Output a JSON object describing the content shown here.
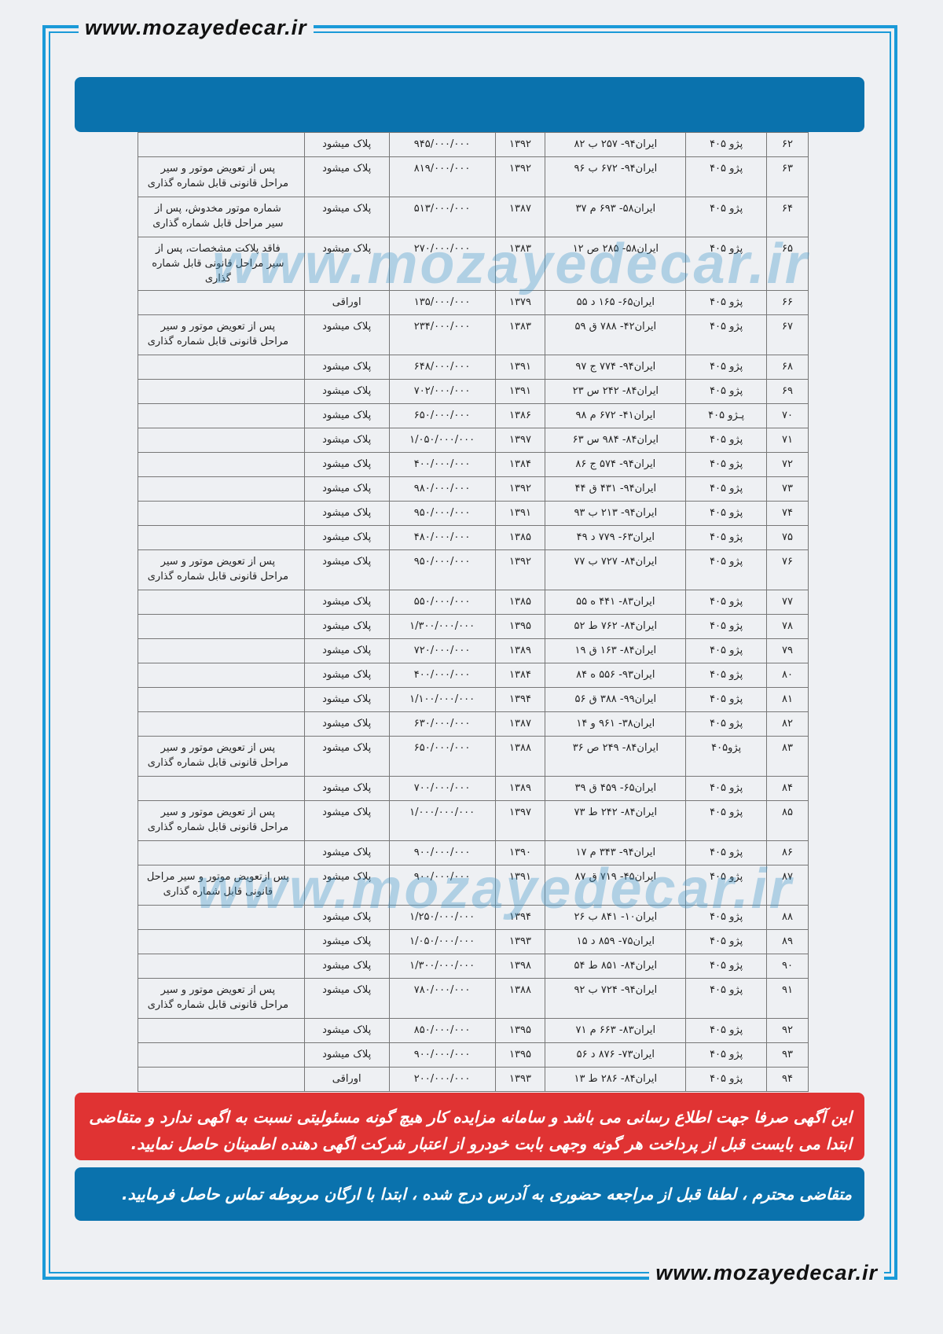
{
  "site": "www.mozayedecar.ir",
  "watermark_fa": "سامانه مزایده کار",
  "colors": {
    "frame": "#1a9ad8",
    "header_bar": "#0a72ad",
    "warning": "#e03333"
  },
  "rows": [
    [
      "۶۲",
      "پژو ۴۰۵",
      "ایران۹۴- ۲۵۷ ب ۸۲",
      "۱۳۹۲",
      "۹۴۵/۰۰۰/۰۰۰",
      "پلاک میشود",
      ""
    ],
    [
      "۶۳",
      "پژو ۴۰۵",
      "ایران۹۴- ۶۷۲ ب ۹۶",
      "۱۳۹۲",
      "۸۱۹/۰۰۰/۰۰۰",
      "پلاک میشود",
      "پس از تعویض موتور و سیر مراحل قانونی قابل شماره گذاری"
    ],
    [
      "۶۴",
      "پژو ۴۰۵",
      "ایران۵۸- ۶۹۳ م ۳۷",
      "۱۳۸۷",
      "۵۱۳/۰۰۰/۰۰۰",
      "پلاک میشود",
      "شماره موتور مخدوش، پس از سیر مراحل قابل شماره گذاری"
    ],
    [
      "۶۵",
      "پژو ۴۰۵",
      "ایران۵۸- ۲۸۵ ص ۱۲",
      "۱۳۸۳",
      "۲۷۰/۰۰۰/۰۰۰",
      "پلاک میشود",
      "فاقد پلاکت مشخصات، پس از سیر مراحل قانونی قابل شماره گذاری"
    ],
    [
      "۶۶",
      "پژو ۴۰۵",
      "ایران۶۵- ۱۶۵ د ۵۵",
      "۱۳۷۹",
      "۱۳۵/۰۰۰/۰۰۰",
      "اوراقی",
      ""
    ],
    [
      "۶۷",
      "پژو ۴۰۵",
      "ایران۴۲- ۷۸۸ ق ۵۹",
      "۱۳۸۳",
      "۲۳۴/۰۰۰/۰۰۰",
      "پلاک میشود",
      "پس از تعویض موتور و سیر مراحل قانونی قابل شماره گذاری"
    ],
    [
      "۶۸",
      "پژو ۴۰۵",
      "ایران۹۴- ۷۷۴ ج ۹۷",
      "۱۳۹۱",
      "۶۴۸/۰۰۰/۰۰۰",
      "پلاک میشود",
      ""
    ],
    [
      "۶۹",
      "پژو ۴۰۵",
      "ایران۸۴- ۲۴۲ س ۲۳",
      "۱۳۹۱",
      "۷۰۲/۰۰۰/۰۰۰",
      "پلاک میشود",
      ""
    ],
    [
      "۷۰",
      "پـژو ۴۰۵",
      "ایران۴۱- ۶۷۲ م ۹۸",
      "۱۳۸۶",
      "۶۵۰/۰۰۰/۰۰۰",
      "پلاک میشود",
      ""
    ],
    [
      "۷۱",
      "پژو ۴۰۵",
      "ایران۸۴- ۹۸۴ س ۶۳",
      "۱۳۹۷",
      "۱/۰۵۰/۰۰۰/۰۰۰",
      "پلاک میشود",
      ""
    ],
    [
      "۷۲",
      "پژو ۴۰۵",
      "ایران۹۴- ۵۷۴ ج ۸۶",
      "۱۳۸۴",
      "۴۰۰/۰۰۰/۰۰۰",
      "پلاک میشود",
      ""
    ],
    [
      "۷۳",
      "پژو ۴۰۵",
      "ایران۹۴- ۴۳۱ ق ۴۴",
      "۱۳۹۲",
      "۹۸۰/۰۰۰/۰۰۰",
      "پلاک میشود",
      ""
    ],
    [
      "۷۴",
      "پژو ۴۰۵",
      "ایران۹۴- ۲۱۳ ب ۹۳",
      "۱۳۹۱",
      "۹۵۰/۰۰۰/۰۰۰",
      "پلاک میشود",
      ""
    ],
    [
      "۷۵",
      "پژو ۴۰۵",
      "ایران۶۳- ۷۷۹ د ۴۹",
      "۱۳۸۵",
      "۴۸۰/۰۰۰/۰۰۰",
      "پلاک میشود",
      ""
    ],
    [
      "۷۶",
      "پژو ۴۰۵",
      "ایران۸۴- ۷۲۷ ب ۷۷",
      "۱۳۹۲",
      "۹۵۰/۰۰۰/۰۰۰",
      "پلاک میشود",
      "پس از تعویض موتور و سیر مراحل قانونی قابل شماره گذاری"
    ],
    [
      "۷۷",
      "پژو ۴۰۵",
      "ایران۸۳- ۴۴۱ ه ۵۵",
      "۱۳۸۵",
      "۵۵۰/۰۰۰/۰۰۰",
      "پلاک میشود",
      ""
    ],
    [
      "۷۸",
      "پژو ۴۰۵",
      "ایران۸۴- ۷۶۲ ط ۵۲",
      "۱۳۹۵",
      "۱/۳۰۰/۰۰۰/۰۰۰",
      "پلاک میشود",
      ""
    ],
    [
      "۷۹",
      "پژو ۴۰۵",
      "ایران۸۴- ۱۶۳ ق ۱۹",
      "۱۳۸۹",
      "۷۲۰/۰۰۰/۰۰۰",
      "پلاک میشود",
      ""
    ],
    [
      "۸۰",
      "پژو ۴۰۵",
      "ایران۹۳- ۵۵۶ ه ۸۴",
      "۱۳۸۴",
      "۴۰۰/۰۰۰/۰۰۰",
      "پلاک میشود",
      ""
    ],
    [
      "۸۱",
      "پژو ۴۰۵",
      "ایران۹۹- ۳۸۸ ق ۵۶",
      "۱۳۹۴",
      "۱/۱۰۰/۰۰۰/۰۰۰",
      "پلاک میشود",
      ""
    ],
    [
      "۸۲",
      "پژو ۴۰۵",
      "ایران۳۸- ۹۶۱ و ۱۴",
      "۱۳۸۷",
      "۶۳۰/۰۰۰/۰۰۰",
      "پلاک میشود",
      ""
    ],
    [
      "۸۳",
      "پژو۴۰۵",
      "ایران۸۴- ۲۴۹ ص ۳۶",
      "۱۳۸۸",
      "۶۵۰/۰۰۰/۰۰۰",
      "پلاک میشود",
      "پس از تعویض موتور و سیر مراحل قانونی قابل شماره گذاری"
    ],
    [
      "۸۴",
      "پژو ۴۰۵",
      "ایران۶۵- ۴۵۹ ق ۳۹",
      "۱۳۸۹",
      "۷۰۰/۰۰۰/۰۰۰",
      "پلاک میشود",
      ""
    ],
    [
      "۸۵",
      "پژو ۴۰۵",
      "ایران۸۴- ۲۴۲ ط ۷۳",
      "۱۳۹۷",
      "۱/۰۰۰/۰۰۰/۰۰۰",
      "پلاک میشود",
      "پس از تعویض موتور و سیر مراحل قانونی قابل شماره گذاری"
    ],
    [
      "۸۶",
      "پژو ۴۰۵",
      "ایران۹۴- ۳۴۳ م ۱۷",
      "۱۳۹۰",
      "۹۰۰/۰۰۰/۰۰۰",
      "پلاک میشود",
      ""
    ],
    [
      "۸۷",
      "پژو ۴۰۵",
      "ایران۴۵- ۷۱۹ ق ۸۷",
      "۱۳۹۱",
      "۹۰۰/۰۰۰/۰۰۰",
      "پلاک میشود",
      "پس ازتعویض موتور و سیر مراحل قانونی قابل شماره گذاری"
    ],
    [
      "۸۸",
      "پژو ۴۰۵",
      "ایران۱۰- ۸۴۱ ب ۲۶",
      "۱۳۹۴",
      "۱/۲۵۰/۰۰۰/۰۰۰",
      "پلاک میشود",
      ""
    ],
    [
      "۸۹",
      "پژو ۴۰۵",
      "ایران۷۵- ۸۵۹ د ۱۵",
      "۱۳۹۳",
      "۱/۰۵۰/۰۰۰/۰۰۰",
      "پلاک میشود",
      ""
    ],
    [
      "۹۰",
      "پژو ۴۰۵",
      "ایران۸۴- ۸۵۱ ط ۵۴",
      "۱۳۹۸",
      "۱/۳۰۰/۰۰۰/۰۰۰",
      "پلاک میشود",
      ""
    ],
    [
      "۹۱",
      "پژو ۴۰۵",
      "ایران۹۴- ۷۲۴ ب ۹۲",
      "۱۳۸۸",
      "۷۸۰/۰۰۰/۰۰۰",
      "پلاک میشود",
      "پس از تعویض موتور و سیر مراحل قانونی قابل شماره گذاری"
    ],
    [
      "۹۲",
      "پژو ۴۰۵",
      "ایران۸۳- ۶۶۳ م ۷۱",
      "۱۳۹۵",
      "۸۵۰/۰۰۰/۰۰۰",
      "پلاک میشود",
      ""
    ],
    [
      "۹۳",
      "پژو ۴۰۵",
      "ایران۷۳- ۸۷۶ د ۵۶",
      "۱۳۹۵",
      "۹۰۰/۰۰۰/۰۰۰",
      "پلاک میشود",
      ""
    ],
    [
      "۹۴",
      "پژو ۴۰۵",
      "ایران۸۴- ۲۸۶ ط ۱۳",
      "۱۳۹۳",
      "۲۰۰/۰۰۰/۰۰۰",
      "اوراقی",
      ""
    ]
  ],
  "disclaimer": "این آگهی صرفا جهت اطلاع رسانی می باشد و سامانه مزایده کار هیچ گونه مسئولیتی نسبت به اگهی ندارد و متقاضی ابتدا می بایست قبل از پرداخت هر گونه وجهی بابت خودرو  از اعتبار شرکت اگهی دهنده اطمینان حاصل نمایید.",
  "notice": "متقاضی محترم ، لطفا قبل از مراجعه حضوری به آدرس درج شده ، ابتدا با ارگان مربوطه تماس حاصل فرمایید."
}
